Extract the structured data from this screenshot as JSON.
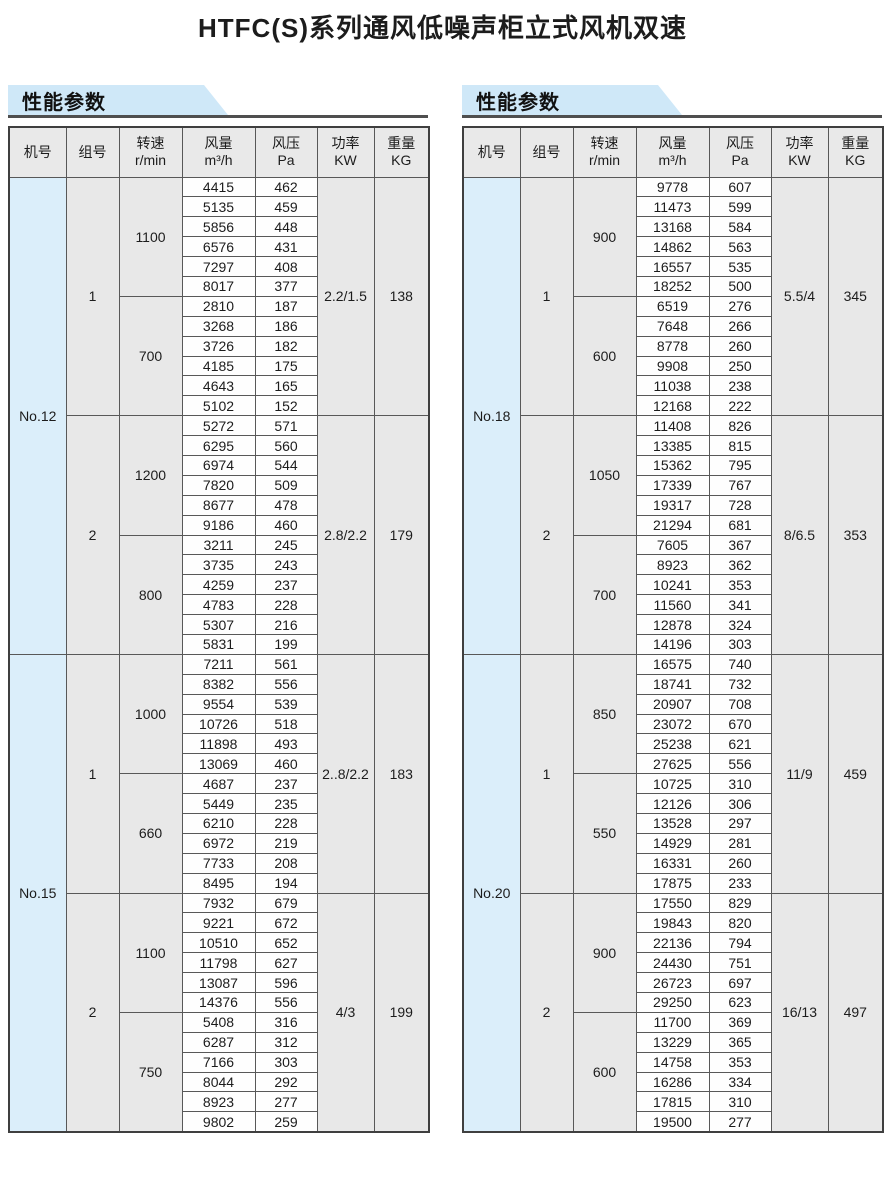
{
  "title": "HTFC(S)系列通风低噪声柜立式风机双速",
  "section_label": "性能参数",
  "table_columns": [
    {
      "line1": "机号",
      "line2": ""
    },
    {
      "line1": "组号",
      "line2": ""
    },
    {
      "line1": "转速",
      "line2": "r/min"
    },
    {
      "line1": "风量",
      "line2": "m³/h"
    },
    {
      "line1": "风压",
      "line2": "Pa"
    },
    {
      "line1": "功率",
      "line2": "KW"
    },
    {
      "line1": "重量",
      "line2": "KG"
    }
  ],
  "colors": {
    "accent_band": "#cfe8f8",
    "machine_col_bg": "#dbeefa",
    "label_cell_bg": "#e8e8e8",
    "value_cell_bg": "#fefefe",
    "border": "#585858"
  },
  "tables": [
    {
      "machines": [
        {
          "no": "No.12",
          "groups": [
            {
              "group": "1",
              "power": "2.2/1.5",
              "weight": "138",
              "speeds": [
                {
                  "rpm": "1100",
                  "rows": [
                    [
                      "4415",
                      "462"
                    ],
                    [
                      "5135",
                      "459"
                    ],
                    [
                      "5856",
                      "448"
                    ],
                    [
                      "6576",
                      "431"
                    ],
                    [
                      "7297",
                      "408"
                    ],
                    [
                      "8017",
                      "377"
                    ]
                  ]
                },
                {
                  "rpm": "700",
                  "rows": [
                    [
                      "2810",
                      "187"
                    ],
                    [
                      "3268",
                      "186"
                    ],
                    [
                      "3726",
                      "182"
                    ],
                    [
                      "4185",
                      "175"
                    ],
                    [
                      "4643",
                      "165"
                    ],
                    [
                      "5102",
                      "152"
                    ]
                  ]
                }
              ]
            },
            {
              "group": "2",
              "power": "2.8/2.2",
              "weight": "179",
              "speeds": [
                {
                  "rpm": "1200",
                  "rows": [
                    [
                      "5272",
                      "571"
                    ],
                    [
                      "6295",
                      "560"
                    ],
                    [
                      "6974",
                      "544"
                    ],
                    [
                      "7820",
                      "509"
                    ],
                    [
                      "8677",
                      "478"
                    ],
                    [
                      "9186",
                      "460"
                    ]
                  ]
                },
                {
                  "rpm": "800",
                  "rows": [
                    [
                      "3211",
                      "245"
                    ],
                    [
                      "3735",
                      "243"
                    ],
                    [
                      "4259",
                      "237"
                    ],
                    [
                      "4783",
                      "228"
                    ],
                    [
                      "5307",
                      "216"
                    ],
                    [
                      "5831",
                      "199"
                    ]
                  ]
                }
              ]
            }
          ]
        },
        {
          "no": "No.15",
          "groups": [
            {
              "group": "1",
              "power": "2..8/2.2",
              "weight": "183",
              "speeds": [
                {
                  "rpm": "1000",
                  "rows": [
                    [
                      "7211",
                      "561"
                    ],
                    [
                      "8382",
                      "556"
                    ],
                    [
                      "9554",
                      "539"
                    ],
                    [
                      "10726",
                      "518"
                    ],
                    [
                      "11898",
                      "493"
                    ],
                    [
                      "13069",
                      "460"
                    ]
                  ]
                },
                {
                  "rpm": "660",
                  "rows": [
                    [
                      "4687",
                      "237"
                    ],
                    [
                      "5449",
                      "235"
                    ],
                    [
                      "6210",
                      "228"
                    ],
                    [
                      "6972",
                      "219"
                    ],
                    [
                      "7733",
                      "208"
                    ],
                    [
                      "8495",
                      "194"
                    ]
                  ]
                }
              ]
            },
            {
              "group": "2",
              "power": "4/3",
              "weight": "199",
              "speeds": [
                {
                  "rpm": "1100",
                  "rows": [
                    [
                      "7932",
                      "679"
                    ],
                    [
                      "9221",
                      "672"
                    ],
                    [
                      "10510",
                      "652"
                    ],
                    [
                      "11798",
                      "627"
                    ],
                    [
                      "13087",
                      "596"
                    ],
                    [
                      "14376",
                      "556"
                    ]
                  ]
                },
                {
                  "rpm": "750",
                  "rows": [
                    [
                      "5408",
                      "316"
                    ],
                    [
                      "6287",
                      "312"
                    ],
                    [
                      "7166",
                      "303"
                    ],
                    [
                      "8044",
                      "292"
                    ],
                    [
                      "8923",
                      "277"
                    ],
                    [
                      "9802",
                      "259"
                    ]
                  ]
                }
              ]
            }
          ]
        }
      ]
    },
    {
      "machines": [
        {
          "no": "No.18",
          "groups": [
            {
              "group": "1",
              "power": "5.5/4",
              "weight": "345",
              "speeds": [
                {
                  "rpm": "900",
                  "rows": [
                    [
                      "9778",
                      "607"
                    ],
                    [
                      "11473",
                      "599"
                    ],
                    [
                      "13168",
                      "584"
                    ],
                    [
                      "14862",
                      "563"
                    ],
                    [
                      "16557",
                      "535"
                    ],
                    [
                      "18252",
                      "500"
                    ]
                  ]
                },
                {
                  "rpm": "600",
                  "rows": [
                    [
                      "6519",
                      "276"
                    ],
                    [
                      "7648",
                      "266"
                    ],
                    [
                      "8778",
                      "260"
                    ],
                    [
                      "9908",
                      "250"
                    ],
                    [
                      "11038",
                      "238"
                    ],
                    [
                      "12168",
                      "222"
                    ]
                  ]
                }
              ]
            },
            {
              "group": "2",
              "power": "8/6.5",
              "weight": "353",
              "speeds": [
                {
                  "rpm": "1050",
                  "rows": [
                    [
                      "11408",
                      "826"
                    ],
                    [
                      "13385",
                      "815"
                    ],
                    [
                      "15362",
                      "795"
                    ],
                    [
                      "17339",
                      "767"
                    ],
                    [
                      "19317",
                      "728"
                    ],
                    [
                      "21294",
                      "681"
                    ]
                  ]
                },
                {
                  "rpm": "700",
                  "rows": [
                    [
                      "7605",
                      "367"
                    ],
                    [
                      "8923",
                      "362"
                    ],
                    [
                      "10241",
                      "353"
                    ],
                    [
                      "11560",
                      "341"
                    ],
                    [
                      "12878",
                      "324"
                    ],
                    [
                      "14196",
                      "303"
                    ]
                  ]
                }
              ]
            }
          ]
        },
        {
          "no": "No.20",
          "groups": [
            {
              "group": "1",
              "power": "11/9",
              "weight": "459",
              "speeds": [
                {
                  "rpm": "850",
                  "rows": [
                    [
                      "16575",
                      "740"
                    ],
                    [
                      "18741",
                      "732"
                    ],
                    [
                      "20907",
                      "708"
                    ],
                    [
                      "23072",
                      "670"
                    ],
                    [
                      "25238",
                      "621"
                    ],
                    [
                      "27625",
                      "556"
                    ]
                  ]
                },
                {
                  "rpm": "550",
                  "rows": [
                    [
                      "10725",
                      "310"
                    ],
                    [
                      "12126",
                      "306"
                    ],
                    [
                      "13528",
                      "297"
                    ],
                    [
                      "14929",
                      "281"
                    ],
                    [
                      "16331",
                      "260"
                    ],
                    [
                      "17875",
                      "233"
                    ]
                  ]
                }
              ]
            },
            {
              "group": "2",
              "power": "16/13",
              "weight": "497",
              "speeds": [
                {
                  "rpm": "900",
                  "rows": [
                    [
                      "17550",
                      "829"
                    ],
                    [
                      "19843",
                      "820"
                    ],
                    [
                      "22136",
                      "794"
                    ],
                    [
                      "24430",
                      "751"
                    ],
                    [
                      "26723",
                      "697"
                    ],
                    [
                      "29250",
                      "623"
                    ]
                  ]
                },
                {
                  "rpm": "600",
                  "rows": [
                    [
                      "11700",
                      "369"
                    ],
                    [
                      "13229",
                      "365"
                    ],
                    [
                      "14758",
                      "353"
                    ],
                    [
                      "16286",
                      "334"
                    ],
                    [
                      "17815",
                      "310"
                    ],
                    [
                      "19500",
                      "277"
                    ]
                  ]
                }
              ]
            }
          ]
        }
      ]
    }
  ]
}
